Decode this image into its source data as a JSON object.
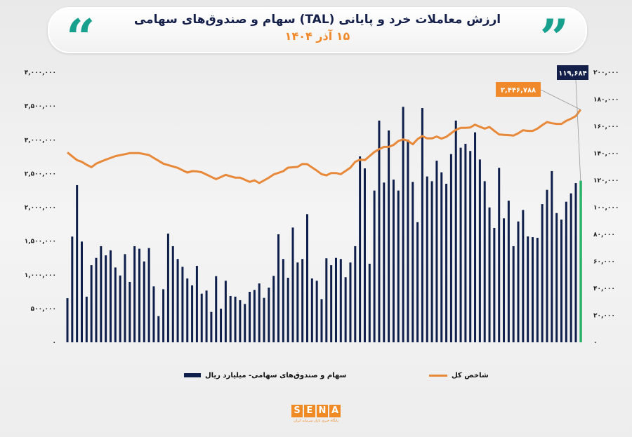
{
  "header": {
    "title": "ارزش معاملات خرد و پایانی (TAL) سهام و صندوق‌های سهامی",
    "subtitle": "۱۵ آذر ۱۴۰۴",
    "quote_open": "“",
    "quote_close": "”",
    "quote_color": "#17a08d"
  },
  "legend": {
    "bars_label": "سهام و صندوق‌های سهامی- میلیارد ریال",
    "line_label": "شاخص کل"
  },
  "logo": {
    "letters": [
      "S",
      "E",
      "N",
      "A"
    ],
    "tagline": "پایگاه خبری بازار سرمایه ایران"
  },
  "chart_data": {
    "type": "bar+line",
    "title": "ارزش معاملات خرد و پایانی (TAL) سهام و صندوق‌های سهامی",
    "grid": false,
    "legend_position": "bottom",
    "left_axis": {
      "series": "شاخص کل",
      "range": [
        0,
        4000000
      ],
      "tick_labels": [
        "۰",
        "۵۰۰,۰۰۰",
        "۱,۰۰۰,۰۰۰",
        "۱,۵۰۰,۰۰۰",
        "۲,۰۰۰,۰۰۰",
        "۲,۵۰۰,۰۰۰",
        "۳,۰۰۰,۰۰۰",
        "۳,۵۰۰,۰۰۰",
        "۴,۰۰۰,۰۰۰"
      ]
    },
    "right_axis": {
      "series": "سهام و صندوق‌های سهامی- میلیارد ریال",
      "range": [
        0,
        200000
      ],
      "tick_labels": [
        "۰",
        "۲۰,۰۰۰",
        "۴۰,۰۰۰",
        "۶۰,۰۰۰",
        "۸۰,۰۰۰",
        "۱۰۰,۰۰۰",
        "۱۲۰,۰۰۰",
        "۱۴۰,۰۰۰",
        "۱۶۰,۰۰۰",
        "۱۸۰,۰۰۰",
        "۲۰۰,۰۰۰"
      ]
    },
    "series": [
      {
        "name": "سهام و صندوق‌های سهامی- میلیارد ریال",
        "type": "bar",
        "axis": "right",
        "color": "#0f1f4b",
        "last_color": "#2bb36a",
        "values": [
          32700,
          78300,
          116400,
          74600,
          33800,
          57100,
          62500,
          71200,
          64400,
          68100,
          55400,
          49500,
          65300,
          44700,
          71200,
          69300,
          59900,
          69800,
          41400,
          19400,
          39300,
          80500,
          71200,
          61700,
          55900,
          47300,
          42200,
          56600,
          36000,
          38300,
          22500,
          49000,
          24900,
          45600,
          34300,
          33800,
          31200,
          28400,
          37400,
          38800,
          43600,
          32900,
          40500,
          49200,
          80000,
          61700,
          47800,
          85000,
          59100,
          61700,
          94900,
          47300,
          45600,
          32000,
          62200,
          57100,
          62500,
          61700,
          48200,
          59100,
          71200,
          137700,
          128800,
          58200,
          112400,
          164200,
          118300,
          156900,
          120500,
          112400,
          174400,
          150100,
          118800,
          89000,
          173500,
          122800,
          119300,
          134500,
          125900,
          117400,
          139400,
          164200,
          144100,
          147000,
          141700,
          155500,
          135400,
          119300,
          99900,
          84700,
          129200,
          91800,
          104900,
          71200,
          89500,
          98000,
          78400,
          77900,
          77400,
          102300,
          112900,
          126800,
          95700,
          90900,
          104100,
          110300,
          117900,
          119684
        ]
      },
      {
        "name": "شاخص کل",
        "type": "line",
        "axis": "left",
        "color": "#e8893a",
        "values": [
          2812000,
          2755000,
          2698000,
          2673000,
          2630000,
          2594000,
          2646000,
          2676000,
          2705000,
          2731000,
          2757000,
          2772000,
          2787000,
          2802000,
          2802000,
          2802000,
          2788000,
          2774000,
          2731000,
          2689000,
          2646000,
          2625000,
          2605000,
          2584000,
          2549000,
          2514000,
          2535000,
          2532000,
          2518000,
          2484000,
          2450000,
          2417000,
          2448000,
          2480000,
          2459000,
          2438000,
          2438000,
          2407000,
          2376000,
          2400000,
          2358000,
          2398000,
          2438000,
          2486000,
          2510000,
          2535000,
          2587000,
          2592000,
          2598000,
          2642000,
          2639000,
          2590000,
          2542000,
          2490000,
          2473000,
          2507000,
          2507000,
          2490000,
          2538000,
          2587000,
          2673000,
          2705000,
          2698000,
          2758000,
          2819000,
          2860000,
          2895000,
          2895000,
          2923000,
          2982000,
          3006000,
          2985000,
          2933000,
          3009000,
          3055000,
          3020000,
          3020000,
          3048000,
          3017000,
          3044000,
          3096000,
          3148000,
          3176000,
          3176000,
          3182000,
          3224000,
          3193000,
          3165000,
          3190000,
          3131000,
          3079000,
          3072000,
          3069000,
          3062000,
          3096000,
          3141000,
          3131000,
          3131000,
          3165000,
          3217000,
          3262000,
          3245000,
          3235000,
          3235000,
          3280000,
          3311000,
          3352000,
          3446788
        ]
      }
    ],
    "annotations": {
      "last_bar_label": "۱۱۹,۶۸۴",
      "last_bar_label_color": "#14204a",
      "last_index_label": "۳,۴۴۶,۷۸۸",
      "last_index_label_color": "#f0892a"
    }
  }
}
